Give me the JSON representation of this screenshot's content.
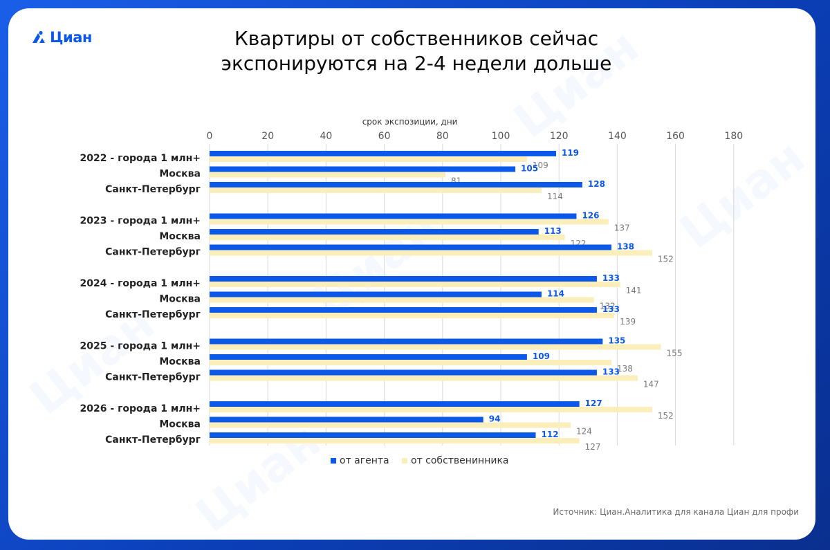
{
  "brand": {
    "logo_text": "Циан",
    "watermark_text": "Циан"
  },
  "title_lines": [
    "Квартиры от собственников сейчас",
    "экспонируются на 2-4 недели дольше"
  ],
  "source": "Источник: Циан.Аналитика для канала Циан для профи",
  "colors": {
    "agent": "#0c58e8",
    "owner": "#faeebb",
    "agent_label": "#0c58e8",
    "owner_label": "#7a7a7a"
  },
  "chart_data": {
    "type": "bar",
    "orientation": "horizontal",
    "xlabel": "срок экспозиции, дни",
    "xlim": [
      0,
      180
    ],
    "xticks": [
      0,
      20,
      40,
      60,
      80,
      100,
      120,
      140,
      160,
      180
    ],
    "grid": true,
    "legend_position": "bottom",
    "groups": [
      {
        "label": "2022",
        "categories": [
          "2022 - города 1 млн+",
          "Москва",
          "Санкт-Петербург"
        ]
      },
      {
        "label": "2023",
        "categories": [
          "2023 - города 1 млн+",
          "Москва",
          "Санкт-Петербург"
        ]
      },
      {
        "label": "2024",
        "categories": [
          "2024 - города 1 млн+",
          "Москва",
          "Санкт-Петербург"
        ]
      },
      {
        "label": "2025",
        "categories": [
          "2025 - города 1 млн+",
          "Москва",
          "Санкт-Петербург"
        ]
      },
      {
        "label": "2026",
        "categories": [
          "2026 - города 1 млн+",
          "Москва",
          "Санкт-Петербург"
        ]
      }
    ],
    "series": [
      {
        "name": "от агента",
        "values": [
          119,
          105,
          128,
          126,
          113,
          138,
          133,
          114,
          133,
          135,
          109,
          133,
          127,
          94,
          112
        ]
      },
      {
        "name": "от собственинника",
        "values": [
          109,
          81,
          114,
          137,
          122,
          152,
          141,
          132,
          139,
          155,
          138,
          147,
          152,
          124,
          127
        ]
      }
    ]
  }
}
